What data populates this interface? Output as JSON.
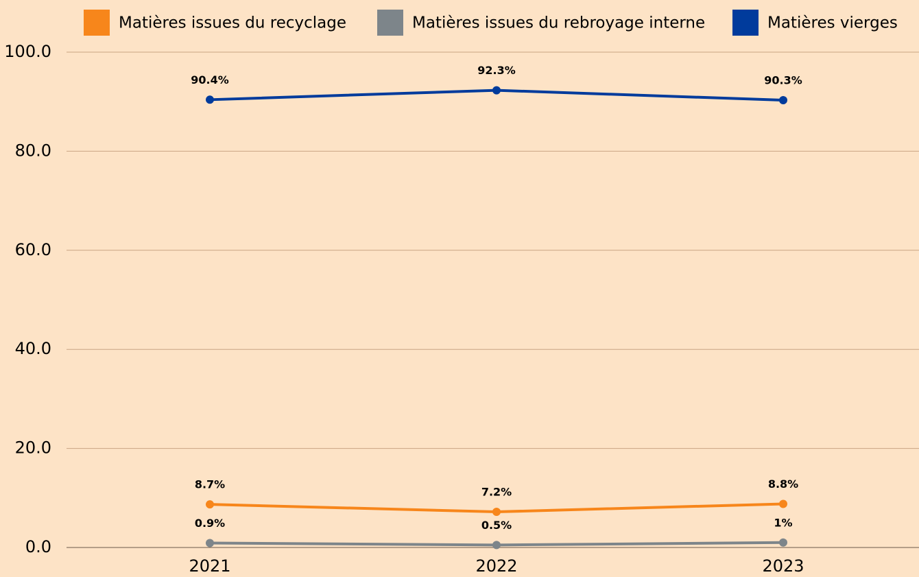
{
  "chart_data": {
    "type": "line",
    "categories": [
      "2021",
      "2022",
      "2023"
    ],
    "series": [
      {
        "name": "Matières issues du recyclage",
        "color": "#f7861b",
        "values": [
          8.7,
          7.2,
          8.8
        ],
        "value_labels": [
          "8.7%",
          "7.2%",
          "8.8%"
        ]
      },
      {
        "name": "Matières issues du rebroyage interne",
        "color": "#7d858a",
        "values": [
          0.9,
          0.5,
          1
        ],
        "value_labels": [
          "0.9%",
          "0.5%",
          "1%"
        ]
      },
      {
        "name": "Matières vierges",
        "color": "#003b9c",
        "values": [
          90.4,
          92.3,
          90.3
        ],
        "value_labels": [
          "90.4%",
          "92.3%",
          "90.3%"
        ]
      }
    ],
    "ylim": [
      0,
      100
    ],
    "yticks": [
      {
        "value": 0,
        "label": "0.0"
      },
      {
        "value": 20,
        "label": "20.0"
      },
      {
        "value": 40,
        "label": "40.0"
      },
      {
        "value": 60,
        "label": "60.0"
      },
      {
        "value": 80,
        "label": "80.0"
      },
      {
        "value": 100,
        "label": "100.0"
      }
    ],
    "grid": true,
    "legend": "top"
  }
}
